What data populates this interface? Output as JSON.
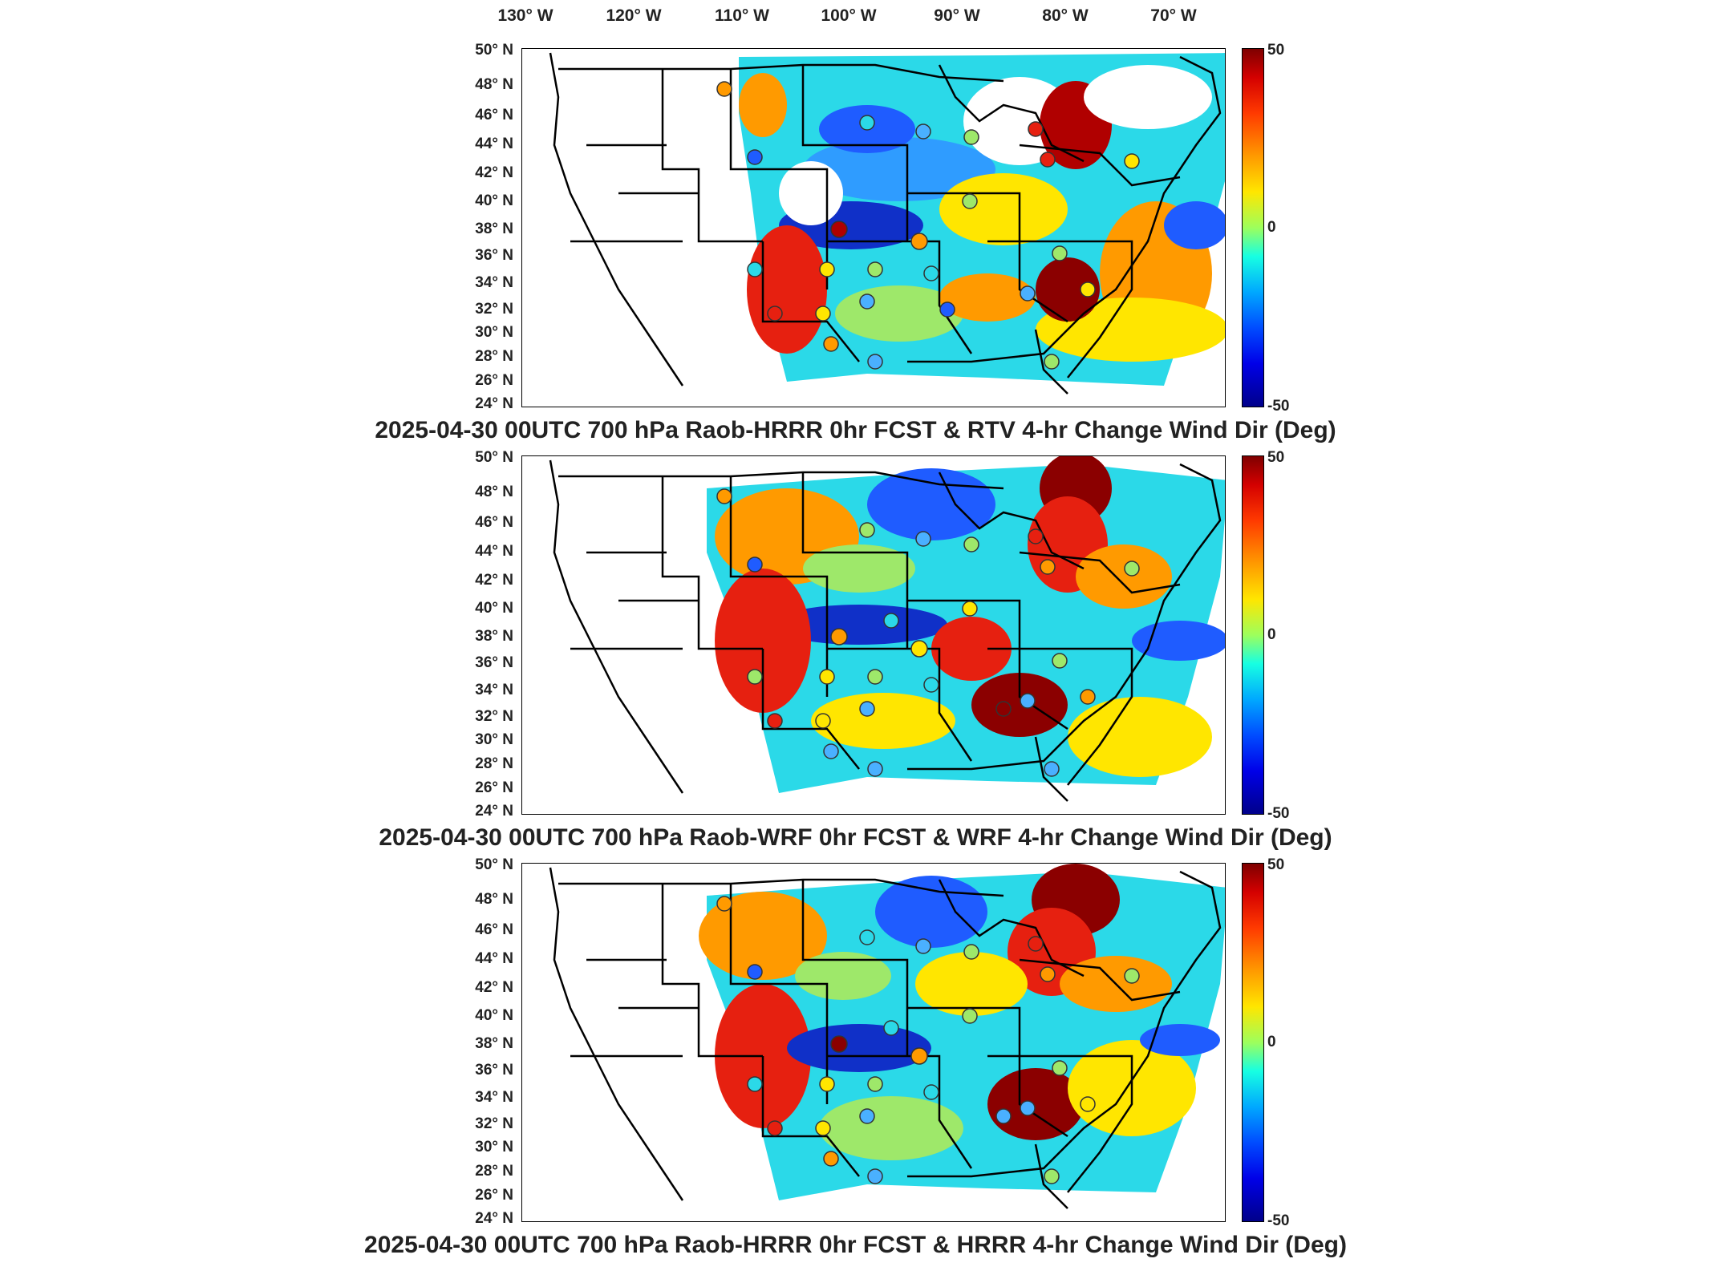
{
  "lon_axis": [
    "130° W",
    "120° W",
    "110° W",
    "100° W",
    "90° W",
    "80° W",
    "70° W"
  ],
  "lat_axis": [
    "50° N",
    "48° N",
    "46° N",
    "44° N",
    "42° N",
    "40° N",
    "38° N",
    "36° N",
    "34° N",
    "32° N",
    "30° N",
    "28° N",
    "26° N",
    "24° N"
  ],
  "colorbar": {
    "max": "50",
    "mid": "0",
    "min": "-50"
  },
  "panels": [
    {
      "title": "2025-04-30 00UTC 700 hPa Raob-HRRR 0hr FCST & RTV 4-hr Change Wind Dir (Deg)"
    },
    {
      "title": "2025-04-30 00UTC 700 hPa Raob-WRF 0hr FCST & WRF 4-hr Change Wind Dir (Deg)"
    },
    {
      "title": "2025-04-30 00UTC 700 hPa Raob-HRRR 0hr FCST & HRRR 4-hr Change Wind Dir (Deg)"
    }
  ],
  "colors": {
    "dark_red": "#8b0000",
    "red": "#e62010",
    "orange": "#ff9a00",
    "yellow": "#ffe600",
    "green": "#9ee86a",
    "cyan": "#2bd9e8",
    "sky": "#4ab0ff",
    "blue": "#1f5cff",
    "navy": "#0a1aa0"
  }
}
